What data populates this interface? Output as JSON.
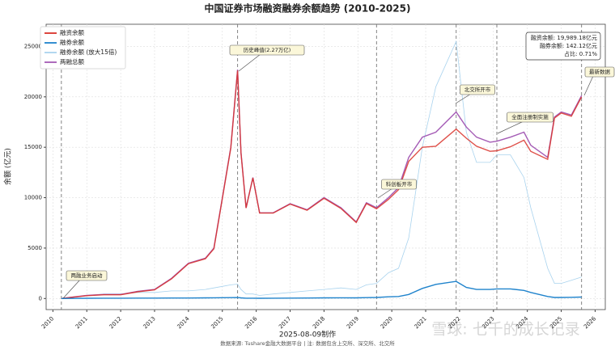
{
  "chart_data": {
    "type": "line",
    "title": "中国证券市场融资融券余额趋势 (2010-2025)",
    "y_label": "余额 (亿元)",
    "footer": "2025-08-09制作",
    "source": "数据来源: Tushare金融大数据平台 | 注: 数据包含上交所、深交所、北交所",
    "watermark": "雪球: 七千的成长记录",
    "x": [
      2010.25,
      2010.5,
      2011.0,
      2011.5,
      2012.0,
      2012.5,
      2013.0,
      2013.5,
      2014.0,
      2014.5,
      2014.75,
      2015.0,
      2015.25,
      2015.45,
      2015.55,
      2015.7,
      2015.9,
      2016.1,
      2016.5,
      2017.0,
      2017.5,
      2018.0,
      2018.5,
      2018.95,
      2019.25,
      2019.55,
      2019.9,
      2020.2,
      2020.5,
      2020.9,
      2021.3,
      2021.9,
      2022.2,
      2022.5,
      2022.9,
      2023.1,
      2023.5,
      2023.9,
      2024.1,
      2024.6,
      2024.8,
      2025.0,
      2025.3,
      2025.6
    ],
    "series": [
      {
        "name": "融券余额 (放大15倍)",
        "color": "#a9d3ee",
        "values": [
          0,
          75,
          300,
          450,
          450,
          600,
          600,
          750,
          750,
          900,
          1050,
          1200,
          1350,
          1425,
          900,
          450,
          450,
          300,
          450,
          600,
          750,
          900,
          1050,
          900,
          1350,
          1500,
          2550,
          3000,
          6000,
          15000,
          21000,
          25500,
          16500,
          13500,
          13500,
          14250,
          14250,
          12000,
          9000,
          3000,
          1500,
          1500,
          1800,
          2131.8
        ]
      },
      {
        "name": "两融总额",
        "color": "#a45bb5",
        "values": [
          0,
          100,
          300,
          400,
          400,
          700,
          900,
          2000,
          3500,
          4000,
          5000,
          10000,
          15000,
          22700,
          14500,
          9000,
          12000,
          8500,
          8500,
          9400,
          8800,
          10000,
          9000,
          7600,
          9500,
          9000,
          10000,
          11000,
          14000,
          16000,
          16500,
          18500,
          17000,
          16000,
          15500,
          15600,
          16000,
          16500,
          15200,
          14000,
          18000,
          18500,
          18200,
          20131.3
        ]
      },
      {
        "name": "融资余额",
        "color": "#d9312a",
        "values": [
          0,
          95,
          280,
          370,
          370,
          660,
          860,
          1950,
          3450,
          3940,
          4930,
          9920,
          14910,
          22605,
          14440,
          8970,
          11970,
          8480,
          8470,
          9360,
          8750,
          9940,
          8930,
          7540,
          9410,
          8900,
          9830,
          10800,
          13600,
          15000,
          15100,
          16800,
          15900,
          15100,
          14600,
          14650,
          15050,
          15700,
          14600,
          13800,
          17900,
          18400,
          18080,
          19989.18
        ]
      },
      {
        "name": "融券余额",
        "color": "#1f83cc",
        "values": [
          0,
          5,
          20,
          30,
          30,
          40,
          40,
          50,
          50,
          60,
          70,
          80,
          90,
          95,
          60,
          30,
          30,
          20,
          30,
          40,
          50,
          60,
          70,
          60,
          90,
          100,
          170,
          200,
          400,
          1000,
          1400,
          1700,
          1100,
          900,
          900,
          950,
          950,
          800,
          600,
          200,
          100,
          100,
          120,
          142.12
        ]
      }
    ],
    "legend_order": [
      2,
      3,
      0,
      1
    ],
    "events": [
      {
        "label": "两融业务启动",
        "x": 2010.25
      },
      {
        "label": "历史峰值(2.27万亿)",
        "x": 2015.45
      },
      {
        "label": "科创板开市",
        "x": 2019.55
      },
      {
        "label": "北交所开市",
        "x": 2021.9
      },
      {
        "label": "全面注册制实施",
        "x": 2023.1
      },
      {
        "label": "最新数据",
        "x": 2025.6
      }
    ],
    "info_box": [
      "融资余额: 19,989.18亿元",
      "融券余额: 142.12亿元",
      "占比: 0.71%"
    ],
    "xlim": [
      2009.8,
      2026.3
    ],
    "ylim": [
      -1100,
      27200
    ],
    "xticks": [
      2010,
      2011,
      2012,
      2013,
      2014,
      2015,
      2016,
      2017,
      2018,
      2019,
      2020,
      2021,
      2022,
      2023,
      2024,
      2025,
      2026
    ],
    "yticks": [
      0,
      5000,
      10000,
      15000,
      20000,
      25000
    ],
    "grid": true,
    "legend": "upper left"
  }
}
